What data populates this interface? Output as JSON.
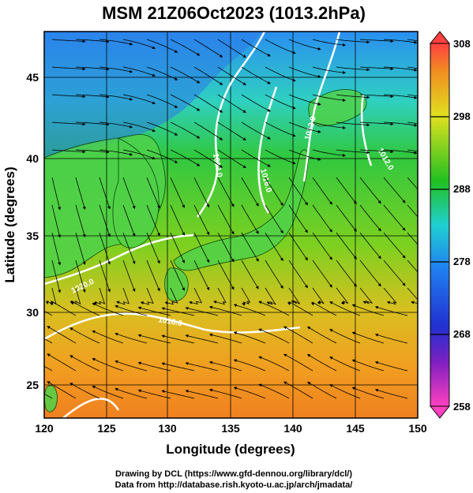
{
  "title": "MSM 21Z06Oct2023 (1013.2hPa)",
  "map": {
    "xlabel": "Longitude (degrees)",
    "ylabel": "Latitude  (degrees)",
    "xlim": [
      120,
      150
    ],
    "ylim": [
      22.5,
      48
    ],
    "xticks": [
      "120",
      "125",
      "130",
      "135",
      "140",
      "145",
      "150"
    ],
    "yticks": [
      "25",
      "30",
      "35",
      "40",
      "45"
    ],
    "contour_labels": [
      "1012.0",
      "1016.0",
      "1012.0",
      "1012.0",
      "1016.0",
      "1020.0",
      "1016.0"
    ]
  },
  "colorbar": {
    "ticks": [
      "258",
      "268",
      "278",
      "288",
      "298",
      "308"
    ],
    "colors": {
      "min": "#ff40c0",
      "blue": "#2030d0",
      "cyan": "#20d0d0",
      "green": "#20c020",
      "yellow": "#e0e020",
      "max": "#ff4040"
    }
  },
  "credits": {
    "line1": "Drawing by DCL (https://www.gfd-dennou.org/library/dcl/)",
    "line2": "Data from http://database.rish.kyoto-u.ac.jp/arch/jmadata/"
  }
}
